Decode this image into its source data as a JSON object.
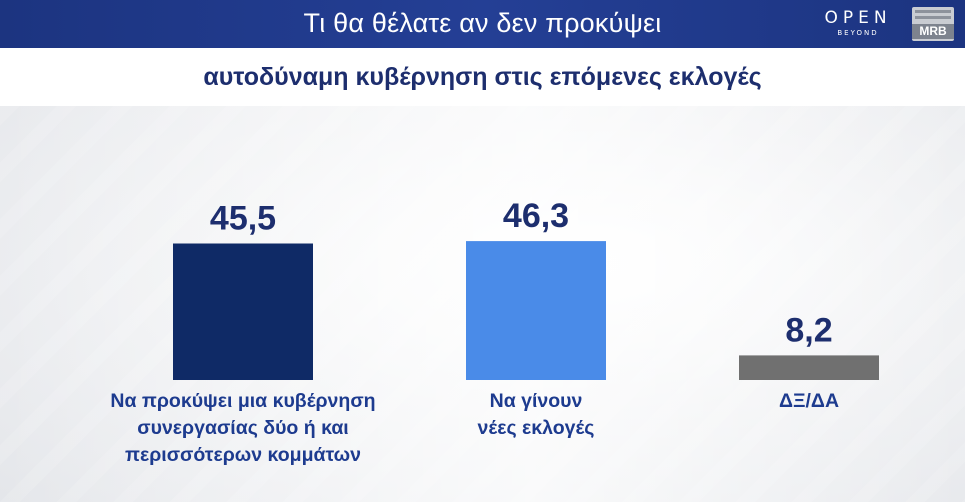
{
  "header": {
    "title": "Τι θα θέλατε αν δεν προκύψει",
    "logo_open": "OPEN",
    "logo_open_sub": "BEYOND",
    "logo_mrb": "MRB"
  },
  "subtitle": "αυτοδύναμη κυβέρνηση στις επόμενες  εκλογές",
  "colors": {
    "header_bg": "#1f3a8a",
    "subtitle_text": "#1d2e6e",
    "label_text": "#1d3b8f",
    "value_text": "#1d2e6e"
  },
  "chart_data": {
    "type": "bar",
    "title": "αυτοδύναμη κυβέρνηση στις επόμενες  εκλογές",
    "categories": [
      "Να προκύψει μια κυβέρνηση\nσυνεργασίας δύο ή και\nπερισσότερων κομμάτων",
      "Να γίνουν\nνέες εκλογές",
      "ΔΞ/ΔΑ"
    ],
    "values": [
      45.5,
      46.3,
      8.2
    ],
    "value_labels": [
      "45,5",
      "46,3",
      "8,2"
    ],
    "bar_colors": [
      "#0f2a66",
      "#4a8be8",
      "#707070"
    ],
    "ylim": [
      0,
      60
    ],
    "grid": false,
    "xlabel": "",
    "ylabel": ""
  }
}
